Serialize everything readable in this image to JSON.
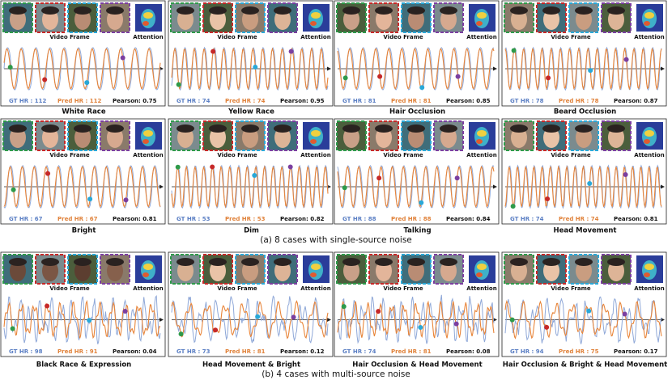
{
  "labels": {
    "video_frame": "Video Frame",
    "attention": "Attention"
  },
  "sections": [
    {
      "caption": "(a) 8 cases with single-source noise",
      "panels": [
        {
          "title": "White Race",
          "gt_hr": "GT HR : 112",
          "pred_hr": "Pred HR : 112",
          "pearson": "Pearson: 0.75"
        },
        {
          "title": "Yellow Race",
          "gt_hr": "GT HR : 74",
          "pred_hr": "Pred HR : 74",
          "pearson": "Pearson: 0.95"
        },
        {
          "title": "Hair Occlusion",
          "gt_hr": "GT HR : 81",
          "pred_hr": "Pred HR : 81",
          "pearson": "Pearson: 0.85"
        },
        {
          "title": "Beard Occlusion",
          "gt_hr": "GT HR : 78",
          "pred_hr": "Pred HR : 78",
          "pearson": "Pearson: 0.87"
        },
        {
          "title": "Bright",
          "gt_hr": "GT HR : 67",
          "pred_hr": "Pred HR : 67",
          "pearson": "Pearson: 0.81"
        },
        {
          "title": "Dim",
          "gt_hr": "GT HR : 53",
          "pred_hr": "Pred HR : 53",
          "pearson": "Pearson: 0.82"
        },
        {
          "title": "Talking",
          "gt_hr": "GT HR : 88",
          "pred_hr": "Pred HR : 88",
          "pearson": "Pearson: 0.84"
        },
        {
          "title": "Head Movement",
          "gt_hr": "GT HR : 74",
          "pred_hr": "Pred HR : 74",
          "pearson": "Pearson: 0.81"
        }
      ]
    },
    {
      "caption": "(b) 4 cases with multi-source noise",
      "panels": [
        {
          "title": "Black Race & Expression",
          "gt_hr": "GT HR : 98",
          "pred_hr": "Pred HR : 91",
          "pearson": "Pearson: 0.04"
        },
        {
          "title": "Head Movement & Bright",
          "gt_hr": "GT HR : 73",
          "pred_hr": "Pred HR : 81",
          "pearson": "Pearson: 0.12"
        },
        {
          "title": "Hair Occlusion & Head Movement",
          "gt_hr": "GT HR : 74",
          "pred_hr": "Pred HR : 81",
          "pearson": "Pearson: 0.08"
        },
        {
          "title": "Hair Occlusion & Bright & Head Movement",
          "gt_hr": "GT HR : 94",
          "pred_hr": "Pred HR : 75",
          "pearson": "Pearson: 0.17"
        }
      ]
    }
  ]
}
